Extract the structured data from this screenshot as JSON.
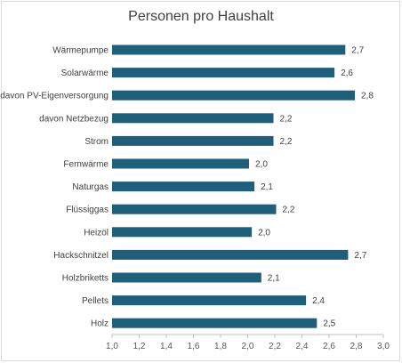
{
  "chart_data": {
    "type": "bar",
    "orientation": "horizontal",
    "title": "Personen pro Haushalt",
    "categories": [
      "Wärmepumpe",
      "Solarwärme",
      "davon PV-Eigenversorgung",
      "davon Netzbezug",
      "Strom",
      "Fernwärme",
      "Naturgas",
      "Flüssiggas",
      "Heizöl",
      "Hackschnitzel",
      "Holzbriketts",
      "Pellets",
      "Holz"
    ],
    "values": [
      2.72,
      2.64,
      2.79,
      2.19,
      2.19,
      2.01,
      2.05,
      2.21,
      2.03,
      2.74,
      2.1,
      2.43,
      2.51
    ],
    "data_labels": [
      "2,7",
      "2,6",
      "2,8",
      "2,2",
      "2,2",
      "2,0",
      "2,1",
      "2,2",
      "2,0",
      "2,7",
      "2,1",
      "2,4",
      "2,5"
    ],
    "xlim": [
      1.0,
      3.0
    ],
    "x_ticks": [
      "1,0",
      "1,2",
      "1,4",
      "1,6",
      "1,8",
      "2,0",
      "2,2",
      "2,4",
      "2,6",
      "2,8",
      "3,0"
    ],
    "xlabel": "",
    "ylabel": "",
    "grid": false,
    "bar_color": "#1f5f7a"
  }
}
